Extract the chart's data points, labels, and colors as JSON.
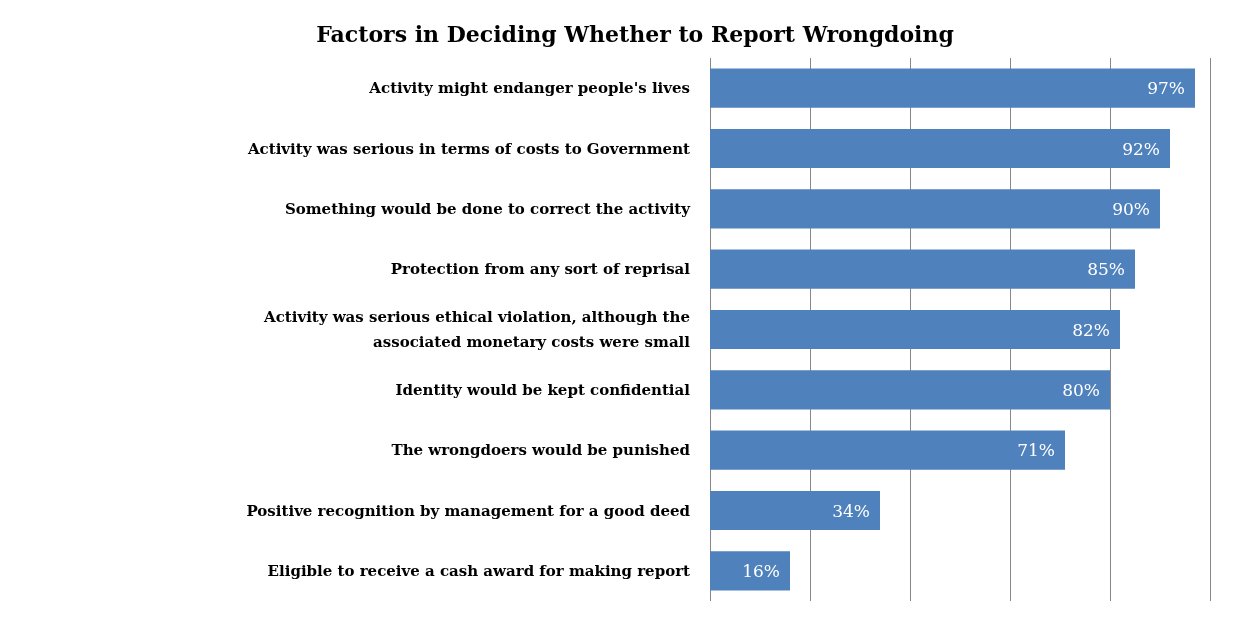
{
  "chart_data": {
    "type": "bar",
    "orientation": "horizontal",
    "title": "Factors in Deciding Whether to Report Wrongdoing",
    "categories": [
      "Activity might endanger people's lives",
      "Activity was serious in terms of costs to Government",
      "Something would be done to correct the activity",
      "Protection from any sort of reprisal",
      "Activity was serious ethical violation, although the\nassociated monetary costs were small",
      "Identity would be kept confidential",
      "The wrongdoers would be punished",
      "Positive recognition by management for a good deed",
      "Eligible to receive a cash award for making report"
    ],
    "values": [
      97,
      92,
      90,
      85,
      82,
      80,
      71,
      34,
      16
    ],
    "value_labels": [
      "97%",
      "92%",
      "90%",
      "85%",
      "82%",
      "80%",
      "71%",
      "34%",
      "16%"
    ],
    "color": "#4f81bd",
    "xlim": [
      0,
      100
    ],
    "xticks": [
      {
        "value": 0,
        "label": null
      },
      {
        "value": 20,
        "label": null
      },
      {
        "value": 40,
        "label": null
      },
      {
        "value": 60,
        "label": null
      },
      {
        "value": 80,
        "label": null
      },
      {
        "value": 100,
        "label": null
      }
    ],
    "tick_labels": "y",
    "grid": "x"
  }
}
